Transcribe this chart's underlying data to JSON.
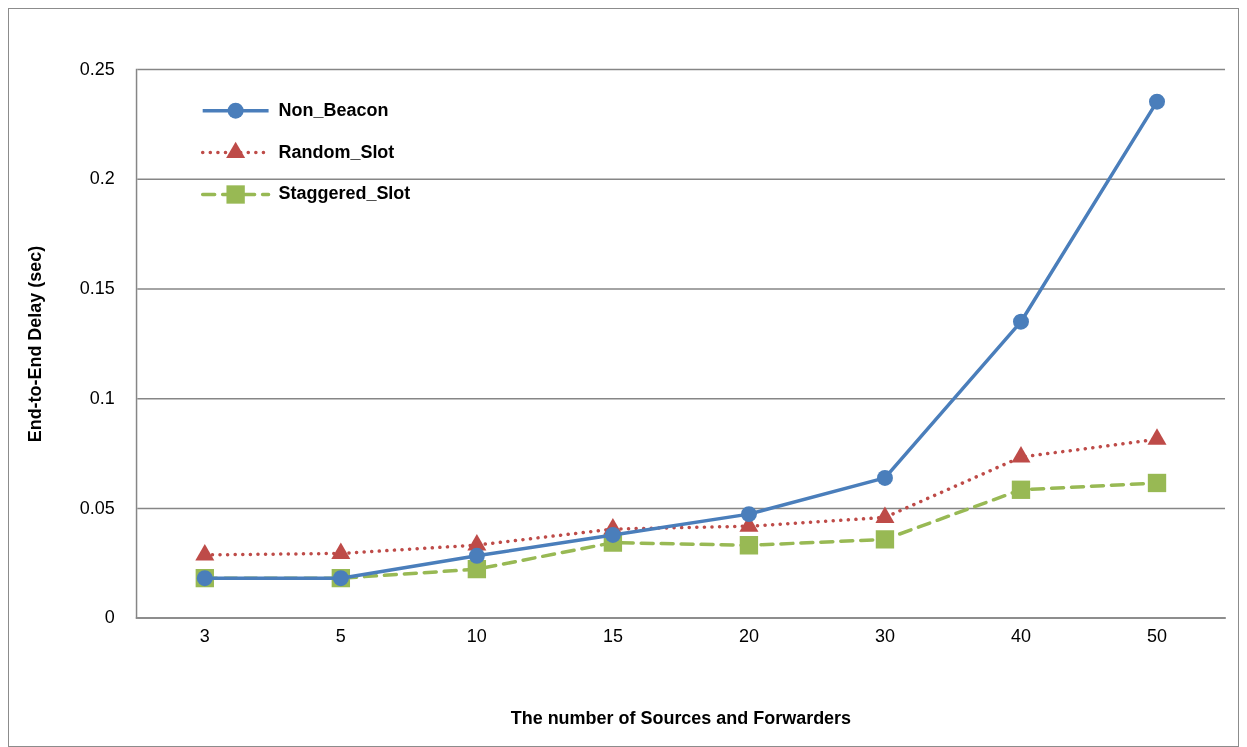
{
  "chart_data": {
    "type": "line",
    "xlabel": "The number of Sources and Forwarders",
    "ylabel": "End-to-End Delay (sec)",
    "categories": [
      "3",
      "5",
      "10",
      "15",
      "20",
      "30",
      "40",
      "50"
    ],
    "series": [
      {
        "name": "Non_Beacon",
        "color": "#4a7ebb",
        "marker": "circle",
        "line_style": "solid",
        "values": [
          0.0183,
          0.0183,
          0.0285,
          0.038,
          0.0475,
          0.064,
          0.1352,
          0.2355
        ]
      },
      {
        "name": "Random_Slot",
        "color": "#be4b48",
        "marker": "triangle",
        "line_style": "dotted",
        "values": [
          0.0289,
          0.0296,
          0.0334,
          0.0407,
          0.042,
          0.046,
          0.0735,
          0.0816
        ]
      },
      {
        "name": "Staggered_Slot",
        "color": "#98b954",
        "marker": "square",
        "line_style": "dashed",
        "values": [
          0.0183,
          0.0183,
          0.0224,
          0.0345,
          0.0333,
          0.036,
          0.0586,
          0.0617
        ]
      }
    ],
    "ylim": [
      0,
      0.25
    ],
    "yticks": [
      0,
      0.05,
      0.1,
      0.15,
      0.2,
      0.25
    ],
    "grid": "y",
    "legend": "top left"
  }
}
